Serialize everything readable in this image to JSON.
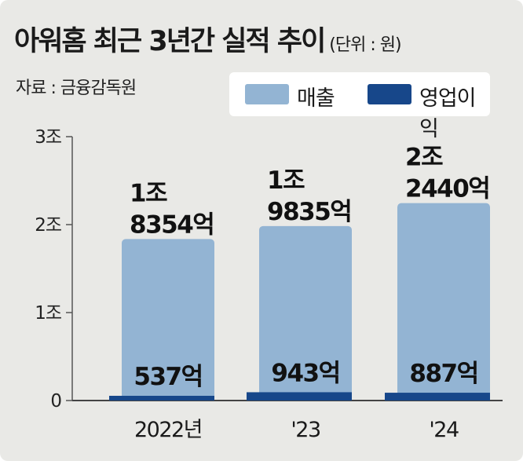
{
  "title": "아워홈 최근 3년간 실적 추이",
  "unit": "(단위 : 원)",
  "source": "자료 : 금융감독원",
  "colors": {
    "revenue": "#93b4d3",
    "operating_profit": "#17478a",
    "background": "#e9e9e6"
  },
  "chart_data": {
    "type": "bar",
    "title": "아워홈 최근 3년간 실적 추이",
    "xlabel": "",
    "ylabel": "",
    "ylim": [
      0,
      3
    ],
    "yunit": "조원",
    "yticks": [
      0,
      1,
      2,
      3
    ],
    "ytick_labels": [
      "0",
      "1조",
      "2조",
      "3조"
    ],
    "categories": [
      "2022년",
      "'23",
      "'24"
    ],
    "series": [
      {
        "name": "매출",
        "values": [
          1.8354,
          1.9835,
          2.244
        ],
        "labels": [
          [
            "1조",
            "8354억"
          ],
          [
            "1조",
            "9835억"
          ],
          [
            "2조",
            "2440억"
          ]
        ]
      },
      {
        "name": "영업이익",
        "values": [
          0.0537,
          0.0943,
          0.0887
        ],
        "labels": [
          [
            "537억"
          ],
          [
            "943억"
          ],
          [
            "887억"
          ]
        ]
      }
    ],
    "legend_position": "top-right"
  }
}
